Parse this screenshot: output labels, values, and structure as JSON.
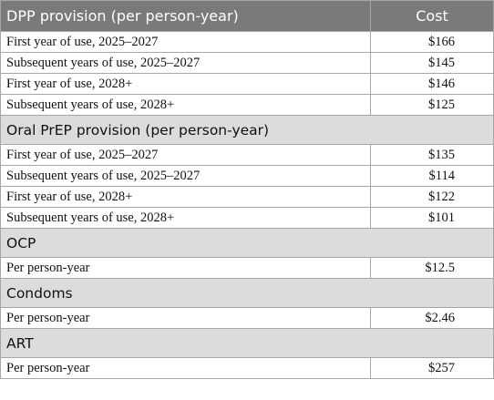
{
  "table": {
    "header": {
      "title": "DPP provision (per person-year)",
      "cost_label": "Cost"
    },
    "first_section_rows": [
      {
        "label": "First year of use, 2025–2027",
        "value": "$166"
      },
      {
        "label": "Subsequent years of use, 2025–2027",
        "value": "$145"
      },
      {
        "label": "First year of use, 2028+",
        "value": "$146"
      },
      {
        "label": "Subsequent years of use, 2028+",
        "value": "$125"
      }
    ],
    "sections": [
      {
        "title": "Oral PrEP provision (per person-year)",
        "rows": [
          {
            "label": "First year of use, 2025–2027",
            "value": "$135"
          },
          {
            "label": "Subsequent years of use, 2025–2027",
            "value": "$114"
          },
          {
            "label": "First year of use, 2028+",
            "value": "$122"
          },
          {
            "label": "Subsequent years of use, 2028+",
            "value": "$101"
          }
        ]
      },
      {
        "title": "OCP",
        "rows": [
          {
            "label": "Per person-year",
            "value": "$12.5"
          }
        ]
      },
      {
        "title": "Condoms",
        "rows": [
          {
            "label": "Per person-year",
            "value": "$2.46"
          }
        ]
      },
      {
        "title": "ART",
        "rows": [
          {
            "label": "Per person-year",
            "value": "$257"
          }
        ]
      }
    ]
  },
  "colors": {
    "header_bg": "#7a7a7a",
    "section_bg": "#dcdcdc",
    "border": "#a6a6a6"
  }
}
